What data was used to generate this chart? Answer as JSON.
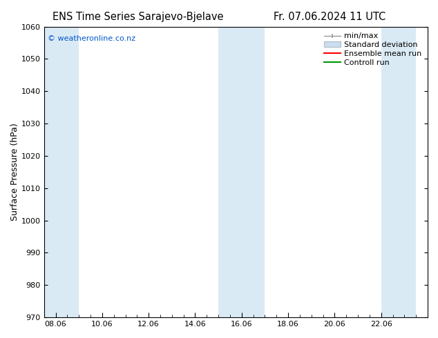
{
  "title_left": "ENS Time Series Sarajevo-Bjelave",
  "title_right": "Fr. 07.06.2024 11 UTC",
  "ylabel": "Surface Pressure (hPa)",
  "ylim": [
    970,
    1060
  ],
  "yticks": [
    970,
    980,
    990,
    1000,
    1010,
    1020,
    1030,
    1040,
    1050,
    1060
  ],
  "x_tick_labels": [
    "08.06",
    "10.06",
    "12.06",
    "14.06",
    "16.06",
    "18.06",
    "20.06",
    "22.06"
  ],
  "x_tick_positions": [
    0,
    2,
    4,
    6,
    8,
    10,
    12,
    14
  ],
  "xlim": [
    -0.5,
    15.5
  ],
  "shaded_bands": [
    {
      "x_start": -0.5,
      "x_end": 1.0,
      "color": "#daeaf5"
    },
    {
      "x_start": 7.0,
      "x_end": 9.0,
      "color": "#daeaf5"
    },
    {
      "x_start": 14.0,
      "x_end": 15.5,
      "color": "#daeaf5"
    }
  ],
  "copyright_text": "© weatheronline.co.nz",
  "copyright_color": "#0055cc",
  "background_color": "#ffffff",
  "title_fontsize": 10.5,
  "axis_label_fontsize": 9,
  "tick_fontsize": 8,
  "legend_fontsize": 8,
  "minmax_color": "#999999",
  "std_face_color": "#ccdded",
  "std_edge_color": "#aabbcc",
  "ensemble_color": "#ff0000",
  "control_color": "#009900"
}
